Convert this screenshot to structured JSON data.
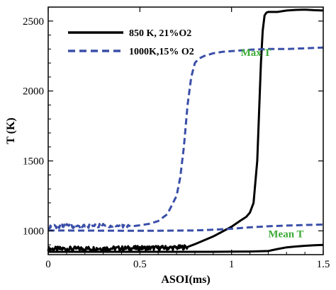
{
  "chart_data": {
    "type": "line",
    "xlabel": "ASOI(ms)",
    "ylabel": "T (K)",
    "xlim": [
      0,
      1.5
    ],
    "ylim": [
      830,
      2600
    ],
    "xticks": [
      0,
      0.5,
      1,
      1.5
    ],
    "xtick_labels": [
      "0",
      "0.5",
      "1",
      "1.5"
    ],
    "yticks": [
      1000,
      1500,
      2000,
      2500
    ],
    "ytick_labels": [
      "1000",
      "1500",
      "2000",
      "2500"
    ],
    "grid": false,
    "legend_position": "top-left",
    "legend": [
      {
        "label": "850 K, 21%O2",
        "color": "#000000",
        "style": "solid"
      },
      {
        "label": "1000K,15% O2",
        "color": "#3a4fa8",
        "style": "dashed"
      }
    ],
    "annotations": [
      {
        "text": "Max T",
        "color": "#3aaa35",
        "x": 1.05,
        "y": 2250
      },
      {
        "text": "Mean T",
        "color": "#3aaa35",
        "x": 1.2,
        "y": 955
      }
    ],
    "series": [
      {
        "name": "850 K, 21%O2",
        "kind": "max",
        "color": "#000000",
        "style": "solid",
        "noisy_until": 0.76,
        "x": [
          0,
          0.1,
          0.2,
          0.3,
          0.4,
          0.5,
          0.6,
          0.7,
          0.76,
          0.8,
          0.9,
          1.0,
          1.05,
          1.08,
          1.1,
          1.12,
          1.14,
          1.15,
          1.16,
          1.17,
          1.18,
          1.19,
          1.2,
          1.25,
          1.3,
          1.35,
          1.4,
          1.45,
          1.5
        ],
        "y": [
          870,
          872,
          873,
          875,
          875,
          877,
          878,
          880,
          885,
          905,
          960,
          1030,
          1075,
          1100,
          1130,
          1200,
          1500,
          1850,
          2200,
          2430,
          2540,
          2560,
          2565,
          2565,
          2575,
          2580,
          2582,
          2578,
          2575
        ]
      },
      {
        "name": "850 K, 21%O2",
        "kind": "mean",
        "color": "#000000",
        "style": "solid",
        "noisy_until": 0,
        "x": [
          0,
          0.3,
          0.6,
          0.9,
          1.0,
          1.1,
          1.2,
          1.25,
          1.3,
          1.35,
          1.4,
          1.45,
          1.5
        ],
        "y": [
          850,
          850,
          850,
          850,
          851,
          852,
          856,
          870,
          882,
          888,
          893,
          897,
          900
        ]
      },
      {
        "name": "1000K,15% O2",
        "kind": "max",
        "color": "#3a4fa8",
        "style": "dashed",
        "noisy_until": 0.45,
        "x": [
          0,
          0.1,
          0.2,
          0.3,
          0.4,
          0.5,
          0.55,
          0.6,
          0.65,
          0.7,
          0.72,
          0.74,
          0.76,
          0.78,
          0.8,
          0.82,
          0.85,
          0.9,
          0.95,
          1.0,
          1.1,
          1.2,
          1.3,
          1.4,
          1.45,
          1.5
        ],
        "y": [
          1030,
          1035,
          1033,
          1037,
          1035,
          1040,
          1050,
          1070,
          1120,
          1250,
          1380,
          1600,
          1900,
          2100,
          2200,
          2230,
          2250,
          2270,
          2280,
          2285,
          2295,
          2300,
          2300,
          2305,
          2308,
          2310
        ]
      },
      {
        "name": "1000K,15% O2",
        "kind": "mean",
        "color": "#3a4fa8",
        "style": "dashed",
        "noisy_until": 0,
        "x": [
          0,
          0.2,
          0.4,
          0.6,
          0.8,
          0.9,
          1.0,
          1.1,
          1.2,
          1.3,
          1.4,
          1.5
        ],
        "y": [
          1003,
          1002,
          1001,
          1001,
          1003,
          1008,
          1015,
          1025,
          1033,
          1038,
          1042,
          1045
        ]
      }
    ]
  }
}
